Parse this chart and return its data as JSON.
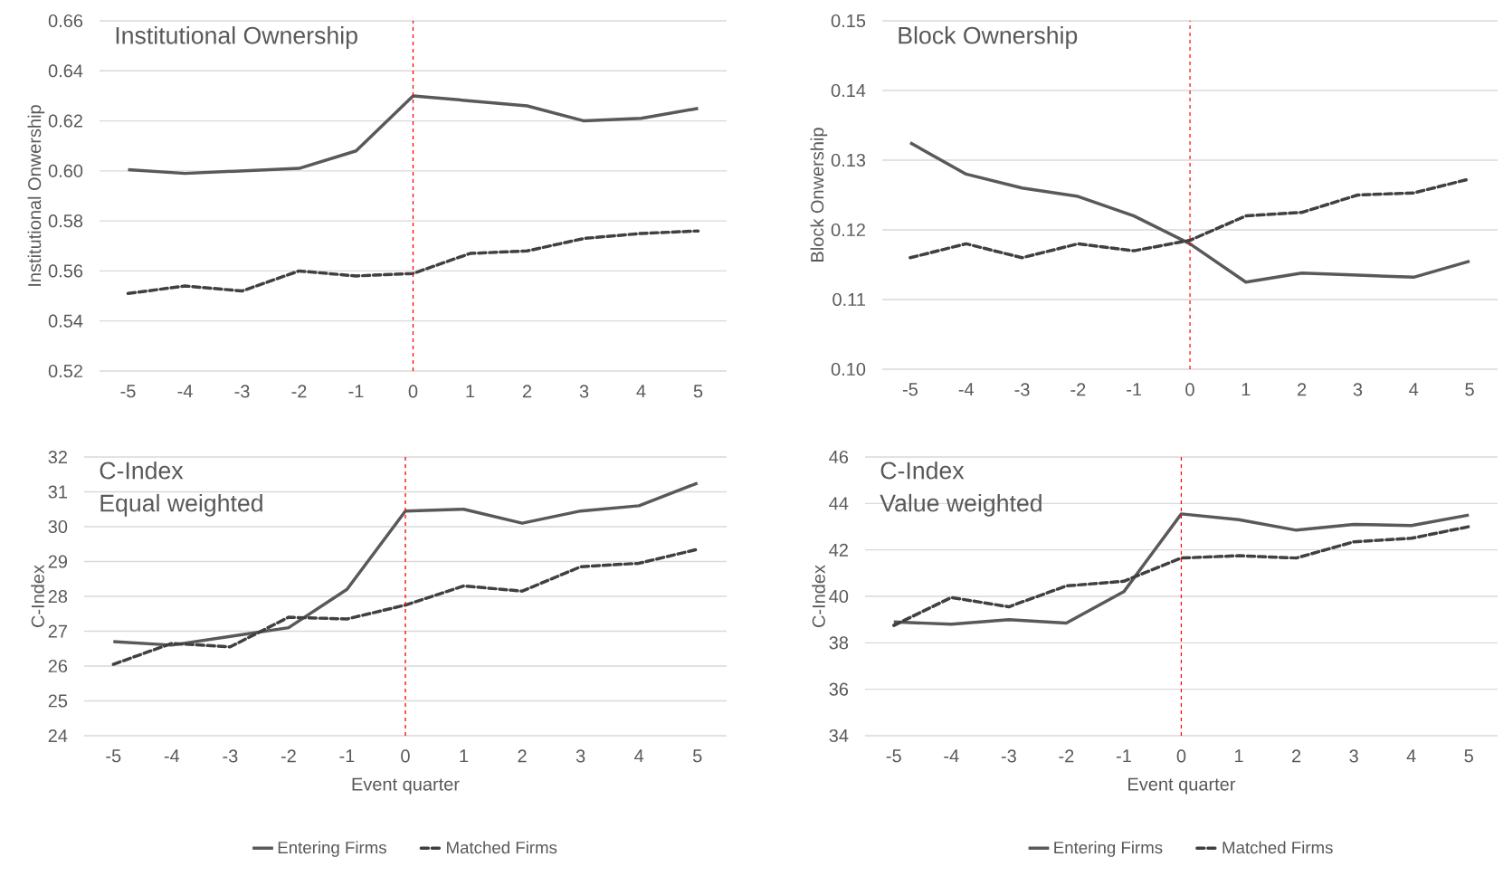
{
  "chart_data": [
    {
      "type": "line",
      "title": "Institutional Ownership",
      "ylabel": "Institutional Onwership",
      "x": [
        -5,
        -4,
        -3,
        -2,
        -1,
        0,
        1,
        2,
        3,
        4,
        5
      ],
      "xlim": [
        -5.5,
        5.5
      ],
      "xticks": [
        -5,
        -4,
        -3,
        -2,
        -1,
        0,
        1,
        2,
        3,
        4,
        5
      ],
      "ylim": [
        0.52,
        0.66
      ],
      "yticks": [
        {
          "value": 0.52,
          "label": "0.52"
        },
        {
          "value": 0.54,
          "label": "0.54"
        },
        {
          "value": 0.56,
          "label": "0.56"
        },
        {
          "value": 0.58,
          "label": "0.58"
        },
        {
          "value": 0.6,
          "label": "0.60"
        },
        {
          "value": 0.62,
          "label": "0.62"
        },
        {
          "value": 0.64,
          "label": "0.64"
        },
        {
          "value": 0.66,
          "label": "0.66"
        }
      ],
      "grid": "y",
      "legend": false,
      "ref_lines": [
        {
          "axis": "x",
          "value": 0,
          "color": "#ff0000",
          "line_style": "dashed"
        }
      ],
      "series": [
        {
          "color": "#595959",
          "line_style": "solid",
          "values": [
            0.6005,
            0.599,
            0.6,
            0.601,
            0.608,
            0.63,
            0.628,
            0.626,
            0.62,
            0.621,
            0.625
          ]
        },
        {
          "color": "#404040",
          "line_style": "dashed",
          "values": [
            0.551,
            0.554,
            0.552,
            0.56,
            0.558,
            0.559,
            0.567,
            0.568,
            0.573,
            0.575,
            0.576
          ]
        }
      ]
    },
    {
      "type": "line",
      "title": "Block Ownership",
      "ylabel": "Block Onwership",
      "x": [
        -5,
        -4,
        -3,
        -2,
        -1,
        0,
        1,
        2,
        3,
        4,
        5
      ],
      "xlim": [
        -5.5,
        5.5
      ],
      "xticks": [
        -5,
        -4,
        -3,
        -2,
        -1,
        0,
        1,
        2,
        3,
        4,
        5
      ],
      "ylim": [
        0.1,
        0.15
      ],
      "yticks": [
        {
          "value": 0.1,
          "label": "0.10"
        },
        {
          "value": 0.11,
          "label": "0.11"
        },
        {
          "value": 0.12,
          "label": "0.12"
        },
        {
          "value": 0.13,
          "label": "0.13"
        },
        {
          "value": 0.14,
          "label": "0.14"
        },
        {
          "value": 0.15,
          "label": "0.15"
        }
      ],
      "grid": "y",
      "legend": false,
      "ref_lines": [
        {
          "axis": "x",
          "value": 0,
          "color": "#ff0000",
          "line_style": "dashed"
        }
      ],
      "series": [
        {
          "color": "#595959",
          "line_style": "solid",
          "values": [
            0.1325,
            0.128,
            0.126,
            0.1248,
            0.122,
            0.118,
            0.1125,
            0.1138,
            0.1135,
            0.1132,
            0.1155
          ]
        },
        {
          "color": "#404040",
          "line_style": "dashed",
          "values": [
            0.116,
            0.118,
            0.116,
            0.118,
            0.117,
            0.1185,
            0.122,
            0.1225,
            0.125,
            0.1253,
            0.1273
          ]
        }
      ]
    },
    {
      "type": "line",
      "title": "C-Index",
      "subtitle": "Equal weighted",
      "xlabel": "Event quarter",
      "ylabel": "C-Index",
      "x": [
        -5,
        -4,
        -3,
        -2,
        -1,
        0,
        1,
        2,
        3,
        4,
        5
      ],
      "xlim": [
        -5.5,
        5.5
      ],
      "xticks": [
        -5,
        -4,
        -3,
        -2,
        -1,
        0,
        1,
        2,
        3,
        4,
        5
      ],
      "ylim": [
        24,
        32
      ],
      "yticks": [
        24,
        25,
        26,
        27,
        28,
        29,
        30,
        31,
        32
      ],
      "grid": "y",
      "legend": "bottom",
      "ref_lines": [
        {
          "axis": "x",
          "value": 0,
          "color": "#ff0000",
          "line_style": "dashed"
        }
      ],
      "series": [
        {
          "name": "Entering Firms",
          "color": "#595959",
          "line_style": "solid",
          "values": [
            26.7,
            26.6,
            26.85,
            27.1,
            28.2,
            30.45,
            30.5,
            30.1,
            30.45,
            30.6,
            31.25
          ]
        },
        {
          "name": "Matched Firms",
          "color": "#404040",
          "line_style": "dashed",
          "values": [
            26.05,
            26.65,
            26.55,
            27.4,
            27.35,
            27.75,
            28.3,
            28.15,
            28.85,
            28.95,
            29.35
          ]
        }
      ]
    },
    {
      "type": "line",
      "title": "C-Index",
      "subtitle": "Value weighted",
      "xlabel": "Event quarter",
      "ylabel": "C-Index",
      "x": [
        -5,
        -4,
        -3,
        -2,
        -1,
        0,
        1,
        2,
        3,
        4,
        5
      ],
      "xlim": [
        -5.5,
        5.5
      ],
      "xticks": [
        -5,
        -4,
        -3,
        -2,
        -1,
        0,
        1,
        2,
        3,
        4,
        5
      ],
      "ylim": [
        34,
        46
      ],
      "yticks": [
        34,
        36,
        38,
        40,
        42,
        44,
        46
      ],
      "grid": "y",
      "legend": "bottom",
      "ref_lines": [
        {
          "axis": "x",
          "value": 0,
          "color": "#ff0000",
          "line_style": "dashed"
        }
      ],
      "series": [
        {
          "name": "Entering Firms",
          "color": "#595959",
          "line_style": "solid",
          "values": [
            38.9,
            38.8,
            39.0,
            38.85,
            40.2,
            43.55,
            43.3,
            42.85,
            43.1,
            43.05,
            43.5
          ]
        },
        {
          "name": "Matched Firms",
          "color": "#404040",
          "line_style": "dashed",
          "values": [
            38.75,
            39.95,
            39.55,
            40.45,
            40.65,
            41.65,
            41.75,
            41.65,
            42.35,
            42.5,
            43.0
          ]
        }
      ]
    }
  ]
}
